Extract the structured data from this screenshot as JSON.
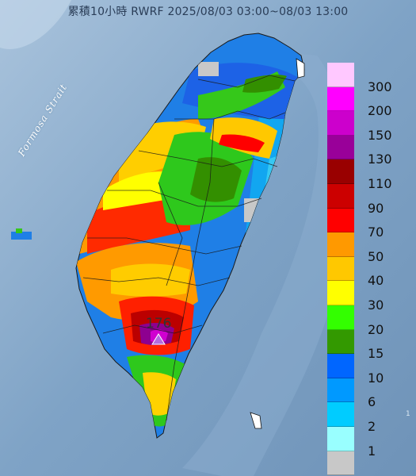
{
  "title": "累積10小時 RWRF 2025/08/03 03:00~08/03 13:00",
  "water_label": "Formosa Strait",
  "max_value_label": "176",
  "edge_label": "1",
  "legend": [
    {
      "label": "300",
      "color": "#ffc8ff"
    },
    {
      "label": "200",
      "color": "#ff00ff"
    },
    {
      "label": "150",
      "color": "#cc00cc"
    },
    {
      "label": "130",
      "color": "#990099"
    },
    {
      "label": "110",
      "color": "#990000"
    },
    {
      "label": "90",
      "color": "#cc0000"
    },
    {
      "label": "70",
      "color": "#ff0000"
    },
    {
      "label": "50",
      "color": "#ff9900"
    },
    {
      "label": "40",
      "color": "#ffc800"
    },
    {
      "label": "30",
      "color": "#ffff00"
    },
    {
      "label": "20",
      "color": "#33ff00"
    },
    {
      "label": "15",
      "color": "#339900"
    },
    {
      "label": "10",
      "color": "#0066ff"
    },
    {
      "label": "6",
      "color": "#0099ff"
    },
    {
      "label": "2",
      "color": "#00ccff"
    },
    {
      "label": "1",
      "color": "#99ffff"
    },
    {
      "label": "",
      "color": "#c8c8c8"
    }
  ],
  "colors": {
    "sea": "#7a9fc4",
    "sea_light": "#9ebbd8",
    "land_base": "#2b86e0",
    "marker": "#b36be0"
  }
}
